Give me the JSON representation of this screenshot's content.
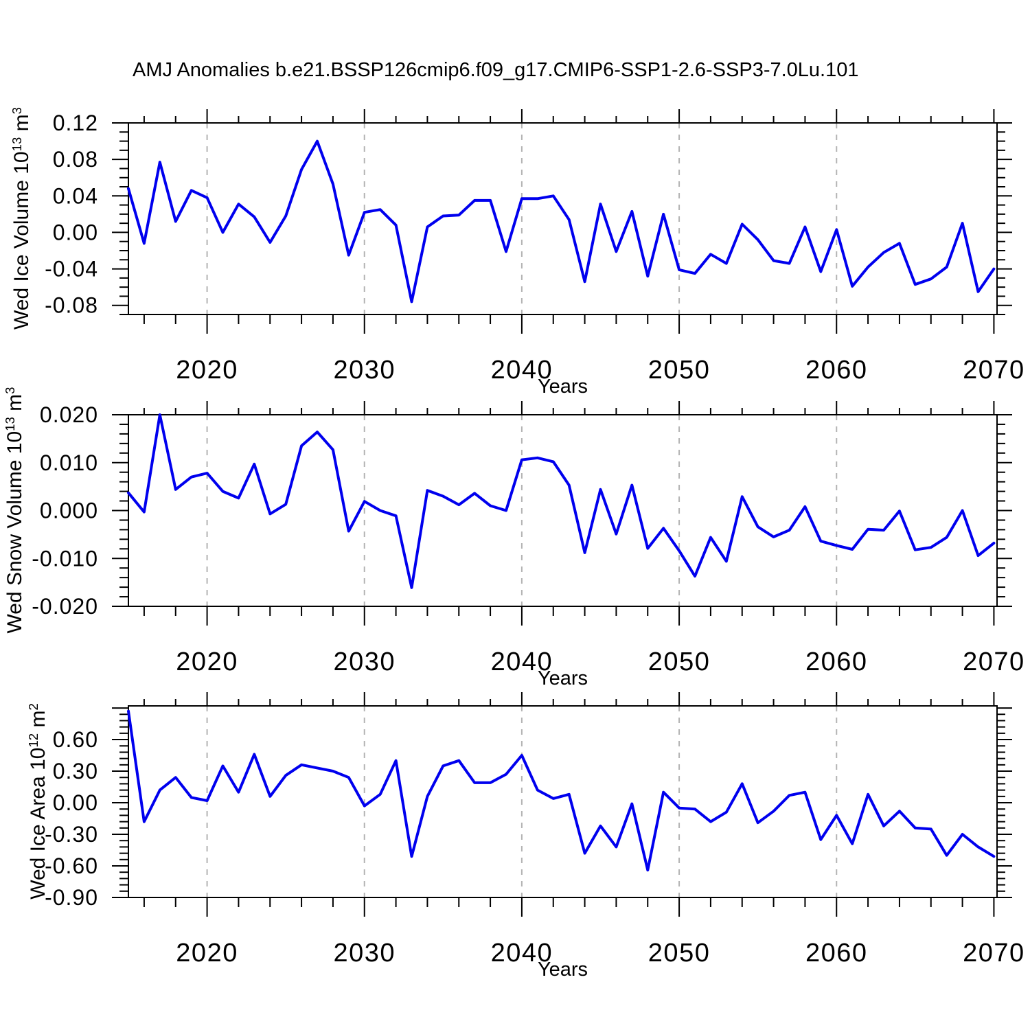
{
  "title": "AMJ Anomalies b.e21.BSSP126cmip6.f09_g17.CMIP6-SSP1-2.6-SSP3-7.0Lu.101",
  "colors": {
    "line": "#0000EE",
    "grid": "#B3B3B3",
    "frame": "#000000",
    "text": "#000000",
    "background": "#FFFFFF"
  },
  "chart_data": [
    {
      "type": "line",
      "name": "Wed Ice Volume anomalies",
      "ylabel": {
        "base": "Wed Ice Volume 10",
        "sup1": "13",
        "mid": " m",
        "sup2": "3"
      },
      "xlabel": "Years",
      "x_start": 2015,
      "x_step": 1,
      "values": [
        0.048,
        -0.012,
        0.077,
        0.012,
        0.046,
        0.038,
        0.0,
        0.031,
        0.017,
        -0.011,
        0.018,
        0.069,
        0.1,
        0.053,
        -0.025,
        0.022,
        0.025,
        0.008,
        -0.076,
        0.006,
        0.018,
        0.019,
        0.035,
        0.035,
        -0.021,
        0.037,
        0.037,
        0.04,
        0.014,
        -0.054,
        0.031,
        -0.021,
        0.023,
        -0.048,
        0.02,
        -0.041,
        -0.045,
        -0.024,
        -0.034,
        0.009,
        -0.008,
        -0.031,
        -0.034,
        0.006,
        -0.043,
        0.003,
        -0.059,
        -0.038,
        -0.022,
        -0.012,
        -0.057,
        -0.051,
        -0.038,
        0.01,
        -0.065,
        -0.04
      ],
      "ylim": [
        -0.09,
        0.12
      ],
      "yticks": [
        {
          "v": 0.12,
          "label": "0.12"
        },
        {
          "v": 0.08,
          "label": "0.08"
        },
        {
          "v": 0.04,
          "label": "0.04"
        },
        {
          "v": 0.0,
          "label": "0.00"
        },
        {
          "v": -0.04,
          "label": "-0.04"
        },
        {
          "v": -0.08,
          "label": "-0.08"
        }
      ],
      "yticks_unlabeled": [],
      "yminor": 0.01,
      "xlim": [
        2015,
        2070.2
      ],
      "xticks": [
        {
          "v": 2020,
          "label": "2020"
        },
        {
          "v": 2030,
          "label": "2030"
        },
        {
          "v": 2040,
          "label": "2040"
        },
        {
          "v": 2050,
          "label": "2050"
        },
        {
          "v": 2060,
          "label": "2060"
        },
        {
          "v": 2070,
          "label": "2070"
        }
      ],
      "xminor": 2,
      "grid_years": [
        2020,
        2030,
        2040,
        2050,
        2060
      ],
      "grid_on": true
    },
    {
      "type": "line",
      "name": "Wed Snow Volume anomalies",
      "ylabel": {
        "base": "Wed Snow Volume 10",
        "sup1": "13",
        "mid": " m",
        "sup2": "3"
      },
      "xlabel": "Years",
      "x_start": 2015,
      "x_step": 1,
      "values": [
        0.0037,
        -0.0003,
        0.02,
        0.0044,
        0.007,
        0.0078,
        0.004,
        0.0026,
        0.0097,
        -0.0007,
        0.0013,
        0.0135,
        0.0164,
        0.0127,
        -0.0043,
        0.0019,
        0.0,
        -0.0011,
        -0.0161,
        0.0042,
        0.003,
        0.0012,
        0.0036,
        0.001,
        0.0,
        0.0106,
        0.011,
        0.0102,
        0.0053,
        -0.0088,
        0.0044,
        -0.0049,
        0.0053,
        -0.0079,
        -0.0037,
        -0.0084,
        -0.0137,
        -0.0056,
        -0.0106,
        0.0029,
        -0.0034,
        -0.0055,
        -0.0041,
        0.0008,
        -0.0064,
        -0.0073,
        -0.0081,
        -0.0039,
        -0.0041,
        -0.0001,
        -0.0082,
        -0.0077,
        -0.0056,
        0.0,
        -0.0094,
        -0.0068
      ],
      "ylim": [
        -0.02,
        0.02
      ],
      "yticks": [
        {
          "v": 0.02,
          "label": "0.020"
        },
        {
          "v": 0.01,
          "label": "0.010"
        },
        {
          "v": 0.0,
          "label": "0.000"
        },
        {
          "v": -0.01,
          "label": "-0.010"
        },
        {
          "v": -0.02,
          "label": "-0.020"
        }
      ],
      "yticks_unlabeled": [],
      "yminor": 0.002,
      "xlim": [
        2015,
        2070.2
      ],
      "xticks": [
        {
          "v": 2020,
          "label": "2020"
        },
        {
          "v": 2030,
          "label": "2030"
        },
        {
          "v": 2040,
          "label": "2040"
        },
        {
          "v": 2050,
          "label": "2050"
        },
        {
          "v": 2060,
          "label": "2060"
        },
        {
          "v": 2070,
          "label": "2070"
        }
      ],
      "xminor": 2,
      "grid_years": [
        2020,
        2030,
        2040,
        2050,
        2060
      ],
      "grid_on": true
    },
    {
      "type": "line",
      "name": "Wed Ice Area anomalies",
      "ylabel": {
        "base": "Wed Ice Area 10",
        "sup1": "12",
        "mid": " m",
        "sup2": "2"
      },
      "xlabel": "Years",
      "x_start": 2015,
      "x_step": 1,
      "values": [
        0.87,
        -0.18,
        0.12,
        0.24,
        0.05,
        0.02,
        0.35,
        0.1,
        0.46,
        0.06,
        0.26,
        0.36,
        0.33,
        0.3,
        0.24,
        -0.03,
        0.08,
        0.4,
        -0.51,
        0.06,
        0.35,
        0.4,
        0.19,
        0.19,
        0.27,
        0.45,
        0.12,
        0.04,
        0.08,
        -0.48,
        -0.22,
        -0.42,
        -0.01,
        -0.64,
        0.1,
        -0.05,
        -0.06,
        -0.18,
        -0.09,
        0.18,
        -0.19,
        -0.08,
        0.07,
        0.1,
        -0.35,
        -0.12,
        -0.39,
        0.08,
        -0.22,
        -0.08,
        -0.24,
        -0.25,
        -0.5,
        -0.3,
        -0.42,
        -0.51
      ],
      "ylim": [
        -0.9,
        0.92
      ],
      "yticks": [
        {
          "v": 0.6,
          "label": "0.60"
        },
        {
          "v": 0.3,
          "label": "0.30"
        },
        {
          "v": 0.0,
          "label": "0.00"
        },
        {
          "v": -0.3,
          "label": "-0.30"
        },
        {
          "v": -0.6,
          "label": "-0.60"
        },
        {
          "v": -0.9,
          "label": "-0.90"
        }
      ],
      "yticks_unlabeled": [
        0.9
      ],
      "yminor": 0.06,
      "xlim": [
        2015,
        2070.2
      ],
      "xticks": [
        {
          "v": 2020,
          "label": "2020"
        },
        {
          "v": 2030,
          "label": "2030"
        },
        {
          "v": 2040,
          "label": "2040"
        },
        {
          "v": 2050,
          "label": "2050"
        },
        {
          "v": 2060,
          "label": "2060"
        },
        {
          "v": 2070,
          "label": "2070"
        }
      ],
      "xminor": 2,
      "grid_years": [
        2020,
        2030,
        2040,
        2050,
        2060
      ],
      "grid_on": true
    }
  ]
}
